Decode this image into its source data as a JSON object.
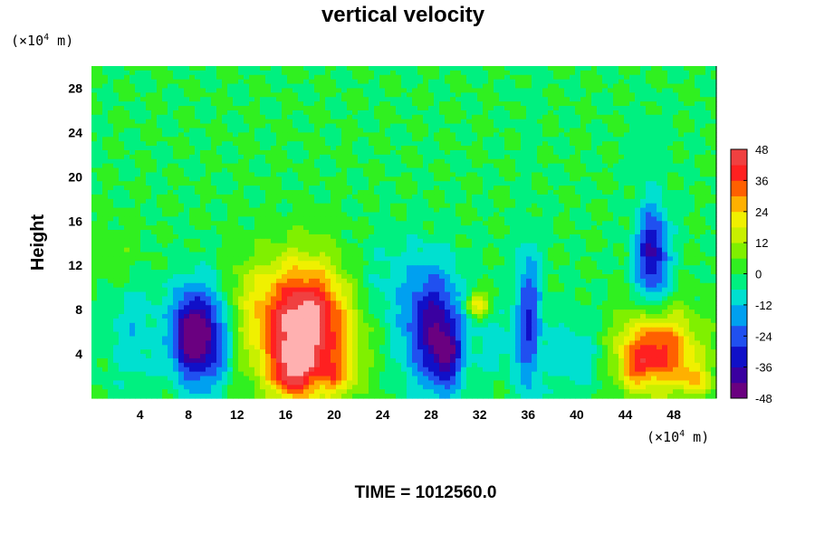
{
  "chart_data": {
    "type": "heatmap",
    "title": "vertical velocity",
    "ylabel": "Height",
    "y_unit": {
      "prefix": "(×10",
      "exp": "4",
      "suffix": " m)"
    },
    "x_unit": {
      "prefix": "(×10",
      "exp": "4",
      "suffix": " m)"
    },
    "xlim": [
      0,
      51.5
    ],
    "ylim": [
      0,
      30
    ],
    "x_ticks": [
      "4",
      "8",
      "12",
      "16",
      "20",
      "24",
      "28",
      "32",
      "36",
      "40",
      "44",
      "48"
    ],
    "x_tick_values": [
      4,
      8,
      12,
      16,
      20,
      24,
      28,
      32,
      36,
      40,
      44,
      48
    ],
    "y_ticks": [
      "4",
      "8",
      "12",
      "16",
      "20",
      "24",
      "28"
    ],
    "y_tick_values": [
      4,
      8,
      12,
      16,
      20,
      24,
      28
    ],
    "colorbar": {
      "range": [
        -48,
        48
      ],
      "tick_labels": [
        "48",
        "36",
        "24",
        "12",
        "0",
        "-12",
        "-24",
        "-36",
        "-48"
      ],
      "tick_values": [
        48,
        36,
        24,
        12,
        0,
        -12,
        -24,
        -36,
        -48
      ],
      "colormap": [
        {
          "v": -48,
          "color": "#6a0080"
        },
        {
          "v": -42,
          "color": "#3a00a0"
        },
        {
          "v": -36,
          "color": "#1010c8"
        },
        {
          "v": -28,
          "color": "#2050f0"
        },
        {
          "v": -20,
          "color": "#00a0f0"
        },
        {
          "v": -12,
          "color": "#00e0d0"
        },
        {
          "v": -5,
          "color": "#00f080"
        },
        {
          "v": 0,
          "color": "#30f020"
        },
        {
          "v": 6,
          "color": "#80f000"
        },
        {
          "v": 12,
          "color": "#c8f000"
        },
        {
          "v": 18,
          "color": "#f0f000"
        },
        {
          "v": 24,
          "color": "#ffb000"
        },
        {
          "v": 30,
          "color": "#ff6000"
        },
        {
          "v": 36,
          "color": "#ff2020"
        },
        {
          "v": 42,
          "color": "#f04040"
        },
        {
          "v": 48,
          "color": "#ffb0b0"
        }
      ]
    },
    "features": [
      {
        "x": 17.5,
        "y": 6.5,
        "sx": 2.8,
        "sy": 4.0,
        "amp": 56
      },
      {
        "x": 16.5,
        "y": 2.2,
        "sx": 1.2,
        "sy": 1.6,
        "amp": 22
      },
      {
        "x": 20.2,
        "y": 2.0,
        "sx": 1.0,
        "sy": 1.2,
        "amp": 15
      },
      {
        "x": 9.2,
        "y": 5.5,
        "sx": 1.4,
        "sy": 3.0,
        "amp": -46
      },
      {
        "x": 7.6,
        "y": 6.0,
        "sx": 0.9,
        "sy": 2.5,
        "amp": -22
      },
      {
        "x": 28.2,
        "y": 6.2,
        "sx": 1.6,
        "sy": 3.6,
        "amp": -40
      },
      {
        "x": 29.4,
        "y": 3.6,
        "sx": 0.8,
        "sy": 2.0,
        "amp": -22
      },
      {
        "x": 31.8,
        "y": 8.5,
        "sx": 0.7,
        "sy": 0.8,
        "amp": 24
      },
      {
        "x": 36.0,
        "y": 7.0,
        "sx": 0.7,
        "sy": 4.5,
        "amp": -28
      },
      {
        "x": 46.2,
        "y": 13.0,
        "sx": 0.9,
        "sy": 3.0,
        "amp": -38
      },
      {
        "x": 46.5,
        "y": 4.2,
        "sx": 2.4,
        "sy": 2.5,
        "amp": 40
      },
      {
        "x": 44.8,
        "y": 2.6,
        "sx": 0.8,
        "sy": 1.0,
        "amp": 12
      },
      {
        "x": 49.8,
        "y": 1.6,
        "sx": 1.0,
        "sy": 1.0,
        "amp": 16
      },
      {
        "x": 3.5,
        "y": 6.0,
        "sx": 1.5,
        "sy": 3.5,
        "amp": -10
      },
      {
        "x": 2.0,
        "y": 12.5,
        "sx": 1.5,
        "sy": 2.0,
        "amp": 6
      },
      {
        "x": 24.0,
        "y": 10.0,
        "sx": 2.5,
        "sy": 3.0,
        "amp": -8
      },
      {
        "x": 40.0,
        "y": 4.0,
        "sx": 2.0,
        "sy": 2.5,
        "amp": -10
      },
      {
        "x": 33.5,
        "y": 5.0,
        "sx": 1.2,
        "sy": 2.0,
        "amp": -8
      },
      {
        "x": 12.5,
        "y": 9.0,
        "sx": 1.5,
        "sy": 3.0,
        "amp": 6
      }
    ]
  },
  "time_label": "TIME = 1012560.0"
}
